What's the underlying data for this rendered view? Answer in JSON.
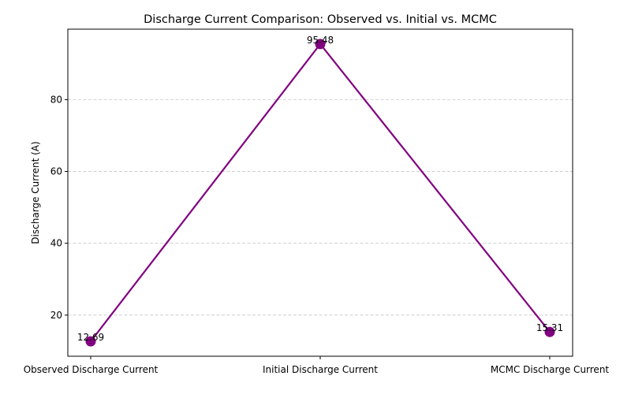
{
  "chart_data": {
    "type": "line",
    "title": "Discharge Current Comparison: Observed vs. Initial vs. MCMC",
    "xlabel": "",
    "ylabel": "Discharge Current (A)",
    "categories": [
      "Observed Discharge Current",
      "Initial Discharge Current",
      "MCMC Discharge Current"
    ],
    "values": [
      12.69,
      95.48,
      15.31
    ],
    "data_labels": [
      "12.69",
      "95.48",
      "15.31"
    ],
    "ylim": [
      8.55,
      99.62
    ],
    "yticks": [
      20,
      40,
      60,
      80
    ],
    "ytick_labels": [
      "20",
      "40",
      "60",
      "80"
    ],
    "grid": "horizontal dashed",
    "legend": "none",
    "colors": {
      "line": "#800080",
      "marker": "#800080",
      "grid": "#c8c8c8"
    }
  }
}
